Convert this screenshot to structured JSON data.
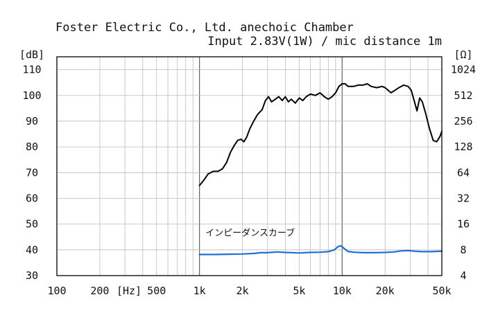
{
  "chart_data": {
    "type": "line",
    "title_line1": "Foster Electric Co., Ltd. anechoic Chamber",
    "title_line2": "Input 2.83V(1W) / mic distance 1m",
    "y_left_unit": "[dB]",
    "y_right_unit": "[Ω]",
    "x_unit": "[Hz]",
    "x_scale": "log",
    "xlim": [
      100,
      50000
    ],
    "ylim_left": [
      30,
      115
    ],
    "y_left_ticks": [
      "30",
      "40",
      "50",
      "60",
      "70",
      "80",
      "90",
      "100",
      "110"
    ],
    "y_right_ticks": [
      "4",
      "8",
      "16",
      "32",
      "64",
      "128",
      "256",
      "512",
      "1024"
    ],
    "x_tick_labels": [
      {
        "x": 100,
        "label": "100"
      },
      {
        "x": 200,
        "label": "200"
      },
      {
        "x": 500,
        "label": "500"
      },
      {
        "x": 1000,
        "label": "1k"
      },
      {
        "x": 2000,
        "label": "2k"
      },
      {
        "x": 5000,
        "label": "5k"
      },
      {
        "x": 10000,
        "label": "10k"
      },
      {
        "x": 20000,
        "label": "20k"
      },
      {
        "x": 50000,
        "label": "50k"
      }
    ],
    "grid": true,
    "series": [
      {
        "color": "#000000",
        "axis": "left",
        "points": [
          [
            1000,
            65
          ],
          [
            1070,
            67
          ],
          [
            1150,
            69.5
          ],
          [
            1250,
            70.5
          ],
          [
            1350,
            70.5
          ],
          [
            1450,
            71.5
          ],
          [
            1550,
            74
          ],
          [
            1650,
            78
          ],
          [
            1750,
            80.5
          ],
          [
            1850,
            82.5
          ],
          [
            1950,
            83
          ],
          [
            2050,
            82
          ],
          [
            2150,
            84
          ],
          [
            2250,
            87
          ],
          [
            2400,
            90
          ],
          [
            2550,
            92.5
          ],
          [
            2750,
            94.5
          ],
          [
            2900,
            98
          ],
          [
            3050,
            99.5
          ],
          [
            3200,
            97.5
          ],
          [
            3400,
            98.5
          ],
          [
            3600,
            99.5
          ],
          [
            3800,
            98
          ],
          [
            4000,
            99.5
          ],
          [
            4200,
            97.5
          ],
          [
            4400,
            98.5
          ],
          [
            4700,
            97
          ],
          [
            5000,
            99
          ],
          [
            5300,
            98
          ],
          [
            5600,
            99.5
          ],
          [
            6000,
            100.5
          ],
          [
            6500,
            100
          ],
          [
            7000,
            101
          ],
          [
            7500,
            99.5
          ],
          [
            8000,
            98.5
          ],
          [
            8500,
            99.5
          ],
          [
            9000,
            101
          ],
          [
            9500,
            103.5
          ],
          [
            10000,
            104.5
          ],
          [
            10500,
            104.5
          ],
          [
            11000,
            103.5
          ],
          [
            12000,
            103.5
          ],
          [
            13000,
            104
          ],
          [
            14000,
            104
          ],
          [
            15000,
            104.5
          ],
          [
            16000,
            103.5
          ],
          [
            17500,
            103
          ],
          [
            19000,
            103.5
          ],
          [
            20000,
            103
          ],
          [
            21000,
            102
          ],
          [
            22000,
            101
          ],
          [
            23500,
            102
          ],
          [
            25000,
            103
          ],
          [
            27000,
            104
          ],
          [
            29000,
            103.5
          ],
          [
            30500,
            102
          ],
          [
            32000,
            98
          ],
          [
            33500,
            94
          ],
          [
            35000,
            99
          ],
          [
            36500,
            97.5
          ],
          [
            38500,
            93
          ],
          [
            41000,
            87
          ],
          [
            43500,
            82.5
          ],
          [
            46000,
            82
          ],
          [
            48500,
            84
          ],
          [
            50000,
            86
          ]
        ]
      },
      {
        "name": "インピーダンスカーブ",
        "color": "#1f6fd6",
        "axis": "left",
        "points": [
          [
            1000,
            38.2
          ],
          [
            1300,
            38.2
          ],
          [
            1600,
            38.3
          ],
          [
            2000,
            38.4
          ],
          [
            2400,
            38.6
          ],
          [
            2700,
            38.9
          ],
          [
            3000,
            38.9
          ],
          [
            3500,
            39.2
          ],
          [
            4000,
            39.0
          ],
          [
            5000,
            38.8
          ],
          [
            6000,
            39.0
          ],
          [
            7000,
            39.1
          ],
          [
            8000,
            39.3
          ],
          [
            8800,
            40.0
          ],
          [
            9400,
            41.3
          ],
          [
            9800,
            41.6
          ],
          [
            10300,
            40.6
          ],
          [
            11000,
            39.4
          ],
          [
            12000,
            39.1
          ],
          [
            14000,
            38.9
          ],
          [
            17000,
            38.9
          ],
          [
            20000,
            39.0
          ],
          [
            23000,
            39.2
          ],
          [
            26000,
            39.6
          ],
          [
            29000,
            39.7
          ],
          [
            32000,
            39.5
          ],
          [
            36000,
            39.3
          ],
          [
            42000,
            39.3
          ],
          [
            50000,
            39.5
          ]
        ]
      }
    ]
  }
}
